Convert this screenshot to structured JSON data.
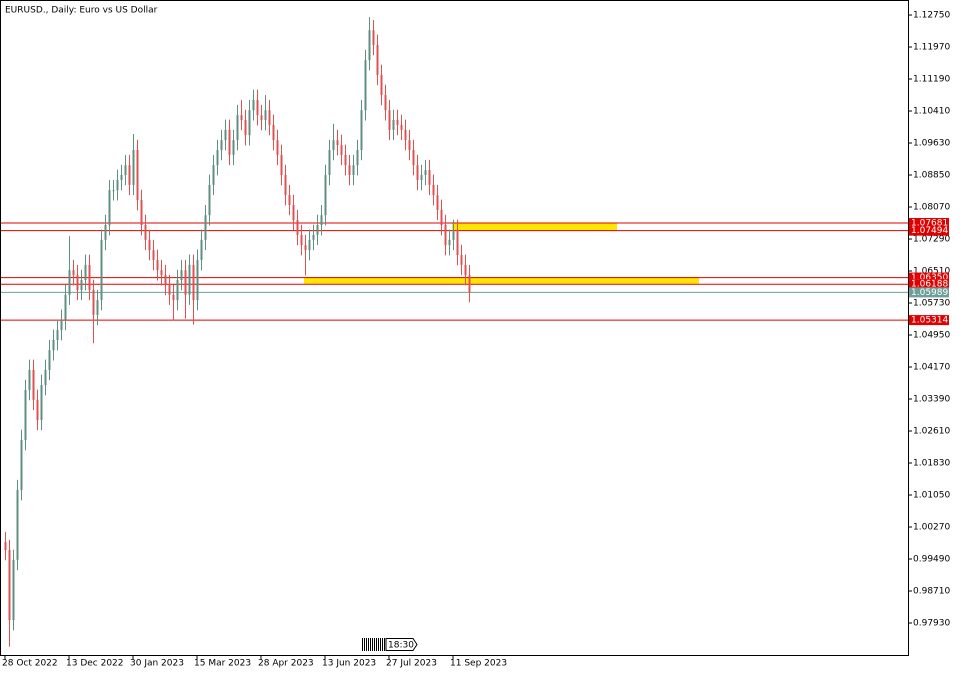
{
  "chart_data": {
    "type": "candlestick",
    "title": "EURUSD., Daily:  Euro vs US Dollar",
    "time_label": "18:30",
    "up_color": "#5f8f80",
    "down_color": "#e05050",
    "level_color": "#e00000",
    "current_color": "#6f9f9a",
    "zone_color": "#ffe600",
    "ylim": [
      0.9715,
      1.13043
    ],
    "yticks": [
      {
        "value": 1.1275,
        "label": "1.12750"
      },
      {
        "value": 1.1197,
        "label": "1.11970"
      },
      {
        "value": 1.1119,
        "label": "1.11190"
      },
      {
        "value": 1.1041,
        "label": "1.10410"
      },
      {
        "value": 1.0963,
        "label": "1.09630"
      },
      {
        "value": 1.0885,
        "label": "1.08850"
      },
      {
        "value": 1.0807,
        "label": "1.08070"
      },
      {
        "value": 1.0729,
        "label": "1.07290"
      },
      {
        "value": 1.0651,
        "label": "1.06510"
      },
      {
        "value": 1.0573,
        "label": "1.05730"
      },
      {
        "value": 1.0495,
        "label": "1.04950"
      },
      {
        "value": 1.0417,
        "label": "1.04170"
      },
      {
        "value": 1.0339,
        "label": "1.03390"
      },
      {
        "value": 1.0261,
        "label": "1.02610"
      },
      {
        "value": 1.0183,
        "label": "1.01830"
      },
      {
        "value": 1.0105,
        "label": "1.01050"
      },
      {
        "value": 1.0027,
        "label": "1.00270"
      },
      {
        "value": 0.9949,
        "label": "0.99490"
      },
      {
        "value": 0.9871,
        "label": "0.98710"
      },
      {
        "value": 0.9793,
        "label": "0.97930"
      }
    ],
    "levels": [
      {
        "value": 1.07681,
        "label": "1.07681"
      },
      {
        "value": 1.07494,
        "label": "1.07494"
      },
      {
        "value": 1.0635,
        "label": "1.06350"
      },
      {
        "value": 1.06188,
        "label": "1.06188"
      },
      {
        "value": 1.05314,
        "label": "1.05314"
      }
    ],
    "current_price": {
      "value": 1.05989,
      "label": "1.05989"
    },
    "zones": [
      {
        "from": 1.0768,
        "to": 1.075
      },
      {
        "from": 1.0636,
        "to": 1.062
      }
    ],
    "categories": [
      "28 Oct 2022",
      null,
      null,
      null,
      null,
      null,
      null,
      null,
      null,
      null,
      null,
      null,
      null,
      null,
      null,
      null,
      "13 Dec 2022",
      null,
      null,
      null,
      null,
      null,
      null,
      null,
      null,
      null,
      null,
      null,
      null,
      null,
      null,
      null,
      "30 Jan 2023",
      null,
      null,
      null,
      null,
      null,
      null,
      null,
      null,
      null,
      null,
      null,
      null,
      null,
      null,
      null,
      "15 Mar 2023",
      null,
      null,
      null,
      null,
      null,
      null,
      null,
      null,
      null,
      null,
      null,
      null,
      null,
      null,
      null,
      "28 Apr 2023",
      null,
      null,
      null,
      null,
      null,
      null,
      null,
      null,
      null,
      null,
      null,
      null,
      null,
      null,
      null,
      "13 Jun 2023",
      null,
      null,
      null,
      null,
      null,
      null,
      null,
      null,
      null,
      null,
      null,
      null,
      null,
      null,
      null,
      "27 Jul 2023",
      null,
      null,
      null,
      null,
      null,
      null,
      null,
      null,
      null,
      null,
      null,
      null,
      null,
      null,
      null,
      "11 Sep 2023",
      null,
      null,
      null,
      null
    ],
    "open": [
      0.999,
      0.9971,
      0.98,
      0.9947,
      1.0117,
      1.0239,
      1.0361,
      1.041,
      1.0337,
      1.0288,
      1.0373,
      1.041,
      1.0458,
      1.0483,
      1.0507,
      1.0532,
      1.0593,
      1.0653,
      1.0641,
      1.0605,
      1.0629,
      1.0666,
      1.0605,
      1.0544,
      1.058,
      1.0727,
      1.0763,
      1.0848,
      1.0848,
      1.0873,
      1.0885,
      1.0909,
      1.0861,
      1.0946,
      1.0824,
      1.0763,
      1.0727,
      1.0702,
      1.0678,
      1.0653,
      1.0641,
      1.0617,
      1.0593,
      1.058,
      1.0629,
      1.0653,
      1.0593,
      1.0666,
      1.058,
      1.0678,
      1.0727,
      1.0787,
      1.0861,
      1.0909,
      1.0946,
      1.097,
      1.0995,
      1.0934,
      1.097,
      1.1031,
      1.1019,
      1.0982,
      1.1043,
      1.1068,
      1.1031,
      1.1019,
      1.1043,
      1.1007,
      1.097,
      1.0934,
      1.0885,
      1.0836,
      1.0812,
      1.0775,
      1.0739,
      1.0714,
      1.0702,
      1.0727,
      1.0739,
      1.0763,
      1.0787,
      1.0885,
      1.0946,
      1.097,
      1.0958,
      1.0934,
      1.0909,
      1.0885,
      1.0909,
      1.0946,
      1.1043,
      1.1165,
      1.1238,
      1.1202,
      1.1129,
      1.108,
      1.1043,
      1.0995,
      1.1019,
      1.1007,
      1.0995,
      1.097,
      1.0946,
      1.0909,
      1.0873,
      1.0885,
      1.0897,
      1.0861,
      1.0836,
      1.08,
      1.0763,
      1.0714,
      1.0727,
      1.0751,
      1.069,
      1.0666,
      1.0641
    ],
    "high": [
      1.0015,
      0.9996,
      0.9972,
      1.0142,
      1.0264,
      1.0386,
      1.0435,
      1.0435,
      1.0362,
      1.0398,
      1.0435,
      1.0483,
      1.0508,
      1.0532,
      1.0557,
      1.0618,
      1.0736,
      1.0678,
      1.0666,
      1.0654,
      1.0691,
      1.0691,
      1.063,
      1.0605,
      1.0752,
      1.0788,
      1.0873,
      1.0873,
      1.0898,
      1.091,
      1.0934,
      1.0934,
      1.0985,
      1.0971,
      1.0849,
      1.0788,
      1.0752,
      1.0727,
      1.0703,
      1.0678,
      1.0666,
      1.0642,
      1.0618,
      1.0654,
      1.0678,
      1.0678,
      1.0691,
      1.0691,
      1.0703,
      1.0752,
      1.0812,
      1.0886,
      1.0934,
      1.0971,
      1.0995,
      1.102,
      1.102,
      1.0995,
      1.1056,
      1.1068,
      1.1044,
      1.1068,
      1.1093,
      1.1093,
      1.1056,
      1.108,
      1.1068,
      1.1032,
      1.0995,
      1.0959,
      1.091,
      1.0861,
      1.0837,
      1.08,
      1.0764,
      1.0739,
      1.0752,
      1.0764,
      1.0788,
      1.0812,
      1.091,
      1.0971,
      1.101,
      1.0995,
      1.0983,
      1.0959,
      1.0934,
      1.0934,
      1.0971,
      1.1068,
      1.119,
      1.127,
      1.1263,
      1.1227,
      1.1154,
      1.1105,
      1.1068,
      1.1044,
      1.1044,
      1.1032,
      1.102,
      1.0995,
      1.0971,
      1.0934,
      1.091,
      1.0922,
      1.0922,
      1.0886,
      1.0861,
      1.0825,
      1.0788,
      1.0752,
      1.0776,
      1.0776,
      1.0715,
      1.0691,
      1.0666
    ],
    "low": [
      0.9946,
      0.9735,
      0.9775,
      0.9922,
      1.0092,
      1.0214,
      1.0336,
      1.0312,
      1.0263,
      1.0263,
      1.0348,
      1.0385,
      1.0433,
      1.0458,
      1.0482,
      1.0507,
      1.0568,
      1.0616,
      1.058,
      1.058,
      1.0604,
      1.058,
      1.0475,
      1.0519,
      1.0555,
      1.0702,
      1.0738,
      1.0823,
      1.0823,
      1.0848,
      1.086,
      1.0836,
      1.0836,
      1.0799,
      1.0738,
      1.0702,
      1.0677,
      1.0653,
      1.0628,
      1.0616,
      1.0592,
      1.0568,
      1.053,
      1.0555,
      1.0604,
      1.0535,
      1.0568,
      1.052,
      1.0555,
      1.0653,
      1.0702,
      1.0762,
      1.0836,
      1.0884,
      1.0921,
      1.0945,
      1.0909,
      1.0909,
      1.0945,
      1.0994,
      1.0957,
      1.0957,
      1.1018,
      1.1006,
      1.0994,
      1.0994,
      1.0982,
      1.0945,
      1.0909,
      1.086,
      1.0811,
      1.0787,
      1.075,
      1.0714,
      1.0689,
      1.064,
      1.0677,
      1.0702,
      1.0714,
      1.0738,
      1.0762,
      1.086,
      1.0921,
      1.0933,
      1.0909,
      1.0884,
      1.086,
      1.086,
      1.0884,
      1.0921,
      1.1018,
      1.114,
      1.1177,
      1.1104,
      1.1055,
      1.1018,
      1.097,
      1.097,
      1.0982,
      1.097,
      1.0945,
      1.0921,
      1.0884,
      1.0848,
      1.0848,
      1.086,
      1.0836,
      1.0811,
      1.0775,
      1.0738,
      1.0689,
      1.0689,
      1.0702,
      1.0665,
      1.0641,
      1.0616,
      1.0575
    ],
    "close": [
      0.9971,
      0.98,
      0.9947,
      1.0117,
      1.0239,
      1.0361,
      1.041,
      1.0337,
      1.0288,
      1.0373,
      1.041,
      1.0458,
      1.0483,
      1.0507,
      1.0532,
      1.0593,
      1.0653,
      1.0641,
      1.0605,
      1.0629,
      1.0666,
      1.0605,
      1.0544,
      1.058,
      1.0727,
      1.0763,
      1.0848,
      1.0848,
      1.0873,
      1.0885,
      1.0909,
      1.0861,
      1.0946,
      1.0824,
      1.0763,
      1.0727,
      1.0702,
      1.0678,
      1.0653,
      1.0641,
      1.0617,
      1.0593,
      1.058,
      1.0629,
      1.0653,
      1.0593,
      1.0666,
      1.058,
      1.0678,
      1.0727,
      1.0787,
      1.0861,
      1.0909,
      1.0946,
      1.097,
      1.0995,
      1.0934,
      1.097,
      1.1031,
      1.1019,
      1.0982,
      1.1043,
      1.1068,
      1.1031,
      1.1019,
      1.1043,
      1.1007,
      1.097,
      1.0934,
      1.0885,
      1.0836,
      1.0812,
      1.0775,
      1.0739,
      1.0714,
      1.0702,
      1.0727,
      1.0739,
      1.0763,
      1.0787,
      1.0885,
      1.0946,
      1.097,
      1.0958,
      1.0934,
      1.0909,
      1.0885,
      1.0909,
      1.0946,
      1.1043,
      1.1165,
      1.1238,
      1.1202,
      1.1129,
      1.108,
      1.1043,
      1.0995,
      1.1019,
      1.1007,
      1.0995,
      1.097,
      1.0946,
      1.0909,
      1.0873,
      1.0885,
      1.0897,
      1.0861,
      1.0836,
      1.08,
      1.0763,
      1.0714,
      1.0727,
      1.0751,
      1.069,
      1.0666,
      1.0641,
      1.0599
    ]
  }
}
